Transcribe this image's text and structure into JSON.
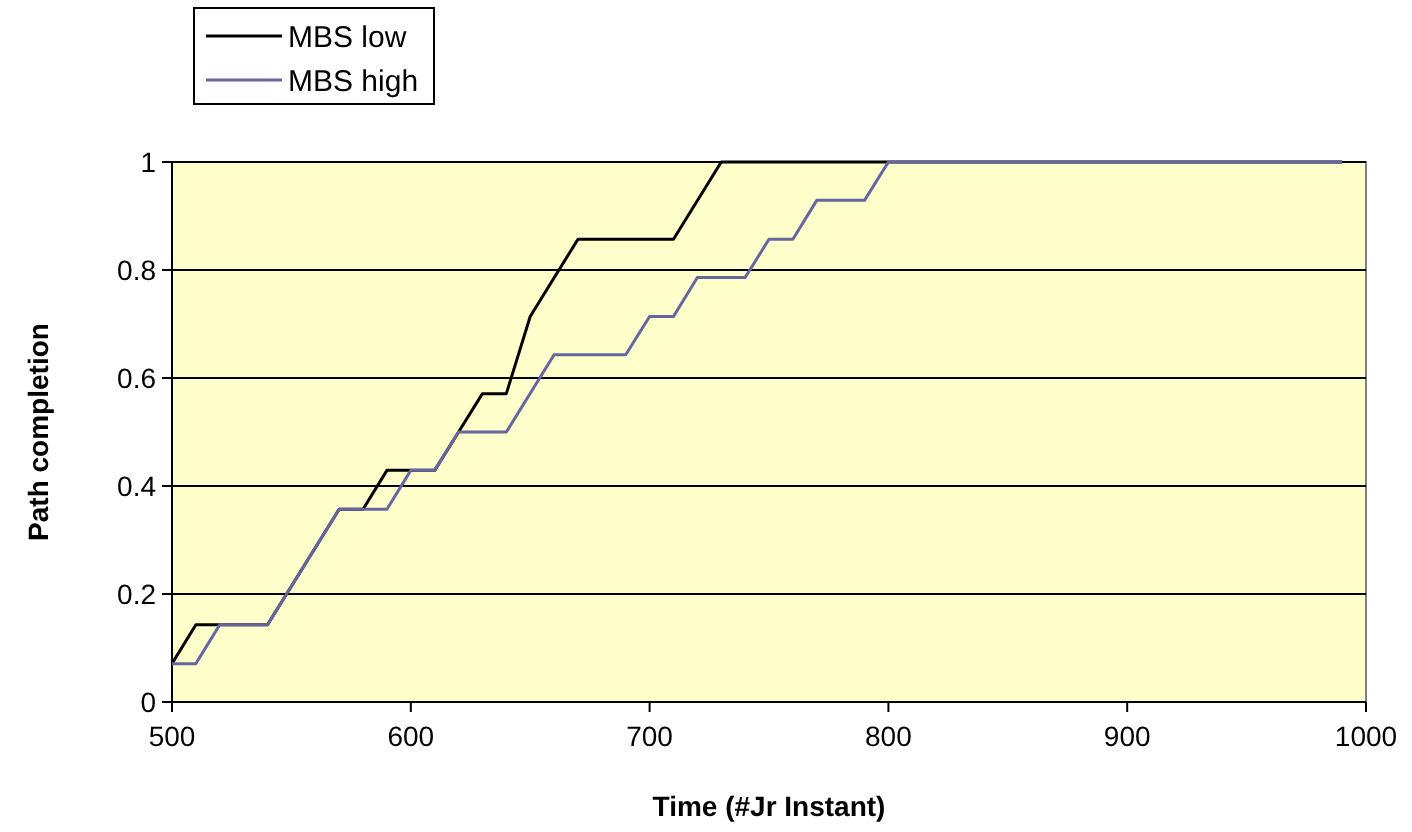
{
  "chart_data": {
    "type": "line",
    "xlabel": "Time (#Jr Instant)",
    "ylabel": "Path completion",
    "xlim": [
      500,
      1000
    ],
    "xticks": [
      500,
      600,
      700,
      800,
      900,
      1000
    ],
    "ylim": [
      0,
      1
    ],
    "yticks": [
      0,
      0.2,
      0.4,
      0.6,
      0.8,
      1
    ],
    "grid": "y",
    "legend": "top left",
    "marker": "none",
    "line_style": "solid",
    "series": [
      {
        "name": "MBS low",
        "color": "#000000",
        "x": [
          500,
          510,
          540,
          570,
          580,
          590,
          610,
          620,
          630,
          640,
          650,
          670,
          710,
          730,
          990
        ],
        "values": [
          0.071,
          0.143,
          0.143,
          0.357,
          0.357,
          0.429,
          0.429,
          0.5,
          0.571,
          0.571,
          0.714,
          0.857,
          0.857,
          1,
          1
        ]
      },
      {
        "name": "MBS high",
        "color": "#6666a0",
        "x": [
          500,
          510,
          520,
          540,
          570,
          590,
          600,
          610,
          620,
          640,
          660,
          690,
          700,
          710,
          720,
          740,
          750,
          760,
          770,
          790,
          800,
          990
        ],
        "values": [
          0.071,
          0.071,
          0.143,
          0.143,
          0.357,
          0.357,
          0.429,
          0.429,
          0.5,
          0.5,
          0.643,
          0.643,
          0.714,
          0.714,
          0.786,
          0.786,
          0.857,
          0.857,
          0.929,
          0.929,
          1,
          1
        ]
      }
    ]
  }
}
